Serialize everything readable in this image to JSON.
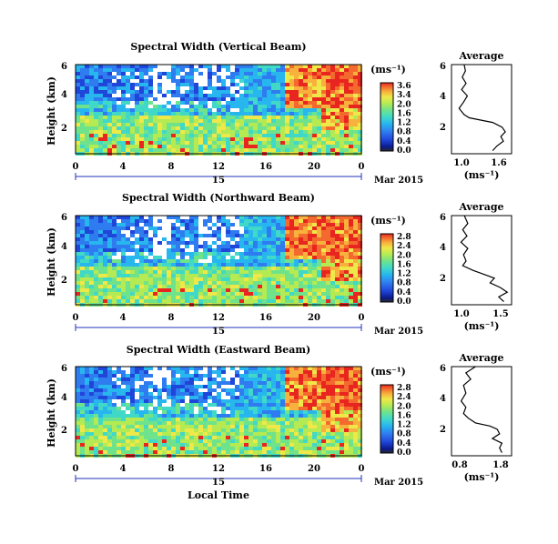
{
  "colors": {
    "colormap": [
      "#2b2b2b",
      "#0a1a8c",
      "#1f45d9",
      "#2f7bf0",
      "#27b6ee",
      "#40d9c8",
      "#6fe38c",
      "#b6ea52",
      "#efe849",
      "#f7b13c",
      "#f46a2e",
      "#e8261f"
    ],
    "heatmap_bg": "#2d52df",
    "gap": "#ffffff",
    "axis": "#000000",
    "time_axis": "#2233bb"
  },
  "xaxis_common": {
    "ticks": [
      "0",
      "4",
      "8",
      "12",
      "16",
      "20",
      "0"
    ],
    "date_tick": "15",
    "month": "Mar 2015",
    "xlabel": "Local Time"
  },
  "chart_data": [
    {
      "type": "heatmap",
      "title": "Spectral Width (Vertical Beam)",
      "ylabel": "Height (km)",
      "yticks": [
        "6",
        "4",
        "2"
      ],
      "unit": "(ms⁻¹)",
      "colorbar_ticks": [
        "3.6",
        "3.4",
        "2.0",
        "1.6",
        "1.2",
        "0.8",
        "0.4",
        "0.0"
      ],
      "xlim": [
        0,
        24
      ],
      "ylim": [
        0.3,
        6
      ],
      "avg_panel": {
        "type": "line",
        "title": "Average",
        "yticks": [
          "6",
          "4",
          "2"
        ],
        "xticks": [
          "1.0",
          "1.6"
        ],
        "xlim": [
          0.8,
          1.75
        ],
        "xlabel": "(ms⁻¹)",
        "profile": [
          [
            1.0,
            6.0
          ],
          [
            1.02,
            5.6
          ],
          [
            0.97,
            5.2
          ],
          [
            1.03,
            4.8
          ],
          [
            0.96,
            4.4
          ],
          [
            1.05,
            4.0
          ],
          [
            0.99,
            3.6
          ],
          [
            0.92,
            3.2
          ],
          [
            1.0,
            2.8
          ],
          [
            1.08,
            2.6
          ],
          [
            1.45,
            2.3
          ],
          [
            1.6,
            2.0
          ],
          [
            1.65,
            1.7
          ],
          [
            1.58,
            1.4
          ],
          [
            1.62,
            1.1
          ],
          [
            1.52,
            0.8
          ],
          [
            1.45,
            0.5
          ]
        ]
      }
    },
    {
      "type": "heatmap",
      "title": "Spectral Width (Northward Beam)",
      "ylabel": "Height (km)",
      "yticks": [
        "6",
        "4",
        "2"
      ],
      "unit": "(ms⁻¹)",
      "colorbar_ticks": [
        "2.8",
        "2.4",
        "2.0",
        "1.6",
        "1.2",
        "0.8",
        "0.4",
        "0.0"
      ],
      "xlim": [
        0,
        24
      ],
      "ylim": [
        0.3,
        6
      ],
      "avg_panel": {
        "type": "line",
        "title": "Average",
        "yticks": [
          "6",
          "4",
          "2"
        ],
        "xticks": [
          "1.0",
          "1.5"
        ],
        "xlim": [
          0.85,
          1.55
        ],
        "xlabel": "(ms⁻¹)",
        "profile": [
          [
            1.0,
            6.0
          ],
          [
            1.04,
            5.5
          ],
          [
            0.98,
            5.1
          ],
          [
            1.03,
            4.7
          ],
          [
            0.96,
            4.3
          ],
          [
            1.04,
            3.9
          ],
          [
            0.99,
            3.5
          ],
          [
            1.02,
            3.1
          ],
          [
            0.98,
            2.8
          ],
          [
            1.1,
            2.5
          ],
          [
            1.25,
            2.2
          ],
          [
            1.35,
            2.0
          ],
          [
            1.3,
            1.7
          ],
          [
            1.42,
            1.4
          ],
          [
            1.5,
            1.1
          ],
          [
            1.4,
            0.8
          ],
          [
            1.46,
            0.5
          ]
        ]
      }
    },
    {
      "type": "heatmap",
      "title": "Spectral Width (Eastward Beam)",
      "ylabel": "Height (km)",
      "yticks": [
        "6",
        "4",
        "2"
      ],
      "unit": "(ms⁻¹)",
      "colorbar_ticks": [
        "2.8",
        "2.4",
        "2.0",
        "1.6",
        "1.2",
        "0.8",
        "0.4",
        "0.0"
      ],
      "xlim": [
        0,
        24
      ],
      "ylim": [
        0.3,
        6
      ],
      "avg_panel": {
        "type": "line",
        "title": "Average",
        "yticks": [
          "6",
          "4",
          "2"
        ],
        "xticks": [
          "0.8",
          "1.8"
        ],
        "xlim": [
          0.7,
          1.95
        ],
        "xlabel": "(ms⁻¹)",
        "profile": [
          [
            1.2,
            6.0
          ],
          [
            1.0,
            5.6
          ],
          [
            1.1,
            5.2
          ],
          [
            0.95,
            4.8
          ],
          [
            1.0,
            4.3
          ],
          [
            0.9,
            3.8
          ],
          [
            1.0,
            3.4
          ],
          [
            0.95,
            3.0
          ],
          [
            1.05,
            2.7
          ],
          [
            1.2,
            2.4
          ],
          [
            1.5,
            2.2
          ],
          [
            1.65,
            2.0
          ],
          [
            1.7,
            1.7
          ],
          [
            1.55,
            1.4
          ],
          [
            1.75,
            1.1
          ],
          [
            1.7,
            0.8
          ],
          [
            1.75,
            0.5
          ]
        ]
      }
    }
  ]
}
